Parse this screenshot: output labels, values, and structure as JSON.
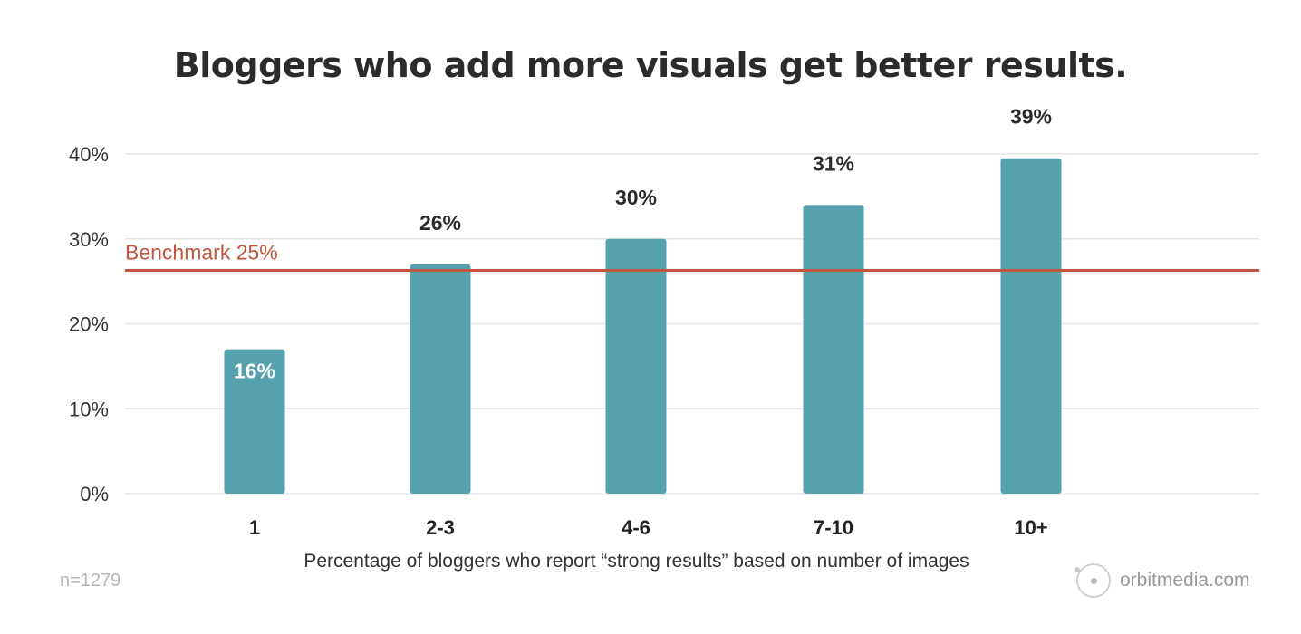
{
  "chart_data": {
    "type": "bar",
    "title": "Bloggers who add more visuals get better results.",
    "xlabel": "Percentage of bloggers who report “strong results” based on number of images",
    "ylabel": "",
    "categories": [
      "1",
      "2-3",
      "4-6",
      "7-10",
      "10+"
    ],
    "values": [
      16,
      26,
      30,
      31,
      39
    ],
    "bar_display_values": [
      17,
      27,
      30,
      34,
      39.5
    ],
    "data_labels": [
      "16%",
      "26%",
      "30%",
      "31%",
      "39%"
    ],
    "y_ticks": [
      "0%",
      "10%",
      "20%",
      "30%",
      "40%"
    ],
    "ylim": [
      0,
      40
    ],
    "grid": true,
    "benchmark": {
      "label": "Benchmark 25%",
      "value": 25,
      "display_value": 26.3,
      "color": "#c0553f"
    },
    "bar_color": "#56a1ae",
    "note": "n=1279"
  },
  "branding": {
    "logo_icon": "orbit-circle-icon",
    "text": "orbitmedia.com"
  }
}
